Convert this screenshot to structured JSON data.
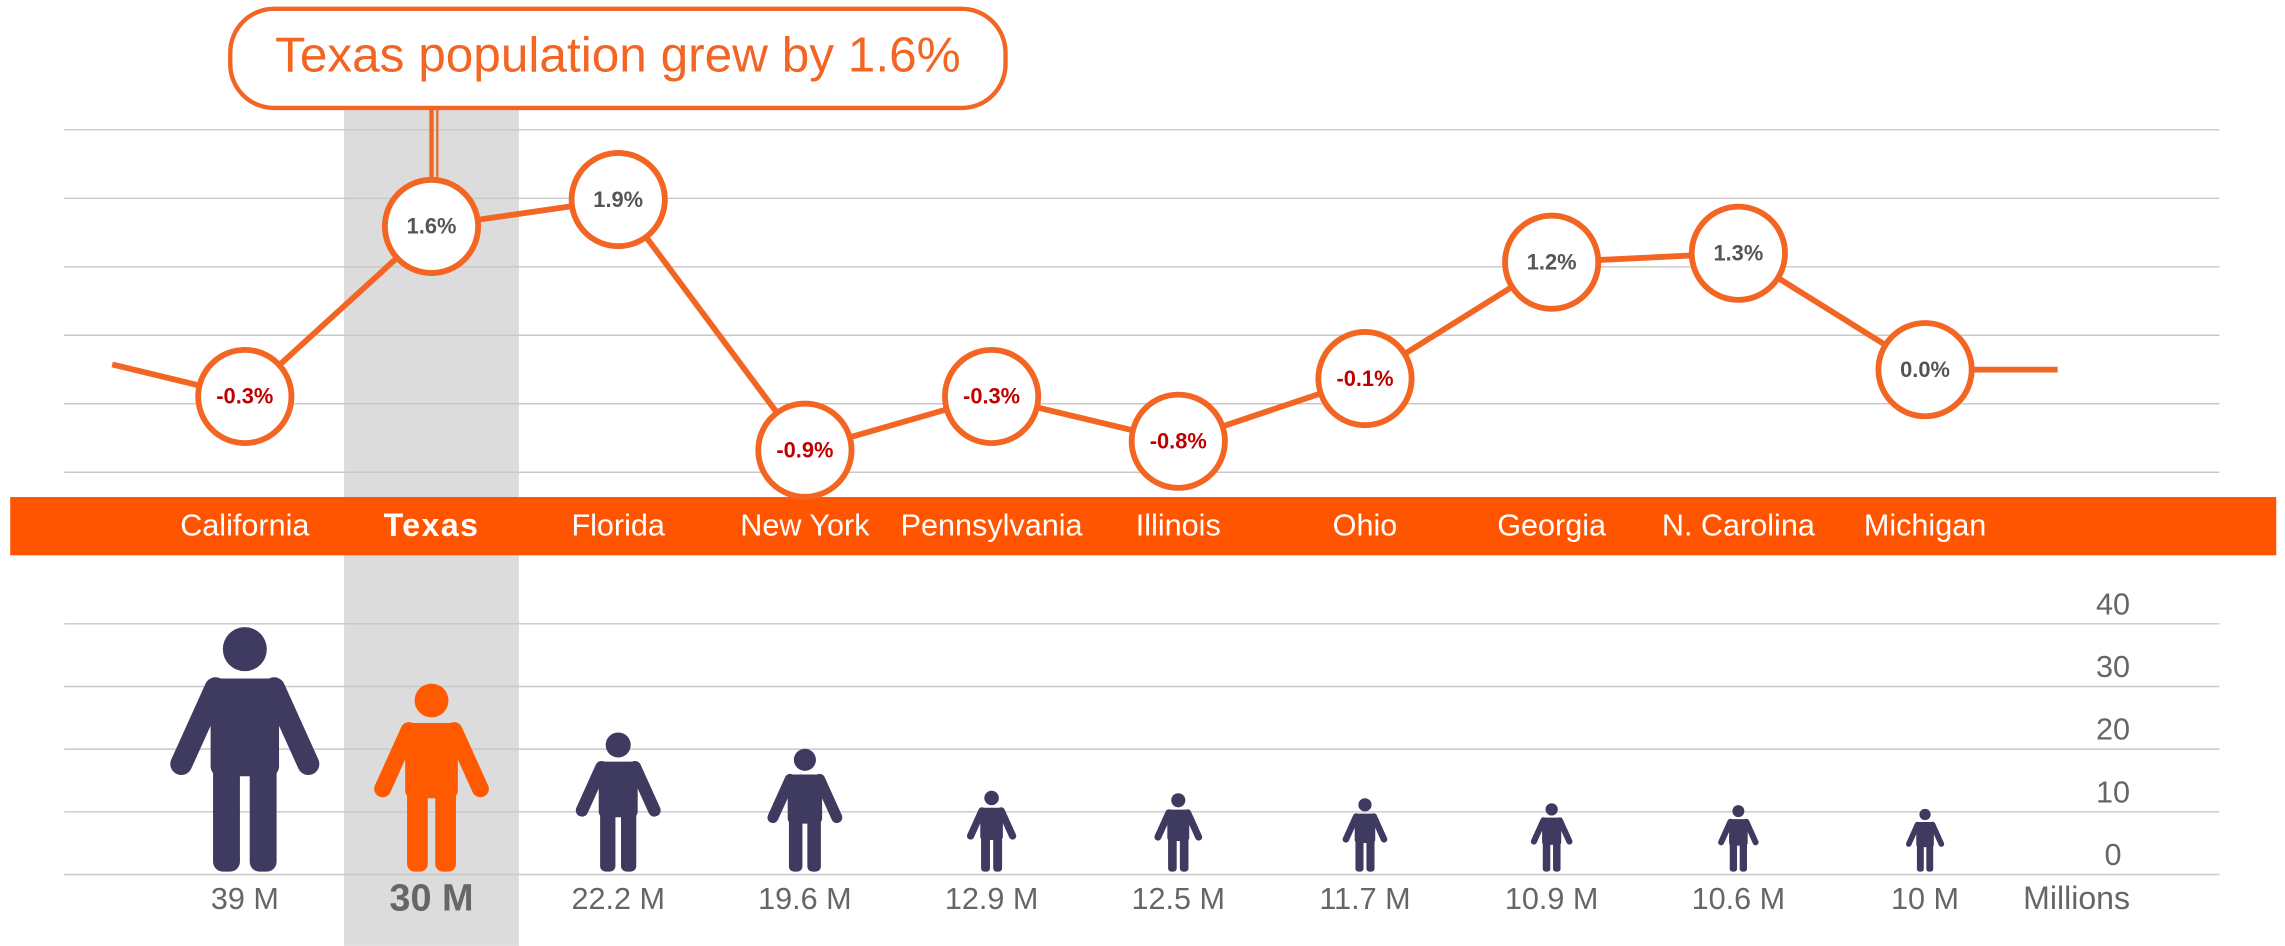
{
  "chart_data": [
    {
      "type": "line",
      "annotation": "Texas population grew by 1.6%",
      "categories": [
        "California",
        "Texas",
        "Florida",
        "New York",
        "Pennsylvania",
        "Illinois",
        "Ohio",
        "Georgia",
        "N. Carolina",
        "Michigan"
      ],
      "values": [
        -0.3,
        1.6,
        1.9,
        -0.9,
        -0.3,
        -0.8,
        -0.1,
        1.2,
        1.3,
        0.0
      ],
      "value_labels": [
        "-0.3%",
        "1.6%",
        "1.9%",
        "-0.9%",
        "-0.3%",
        "-0.8%",
        "-0.1%",
        "1.2%",
        "1.3%",
        "0.0%"
      ],
      "color": "#f26522",
      "negative_label_color": "#c00000",
      "label_color": "#555555",
      "ylim": [
        -1,
        2.5
      ],
      "highlight_index": 1
    },
    {
      "type": "pictogram",
      "values": [
        39,
        30,
        22.2,
        19.6,
        12.9,
        12.5,
        11.7,
        10.9,
        10.6,
        10
      ],
      "value_labels": [
        "39 M",
        "30 M",
        "22.2 M",
        "19.6 M",
        "12.9 M",
        "12.5 M",
        "11.7 M",
        "10.9 M",
        "10.6 M",
        "10 M"
      ],
      "y_label": "Millions",
      "ylim": [
        0,
        40
      ],
      "yticks": [
        0,
        10,
        20,
        30,
        40
      ],
      "grid": true,
      "color": "#3f3a60",
      "highlight_color": "#ff5a00",
      "highlight_index": 1
    }
  ]
}
